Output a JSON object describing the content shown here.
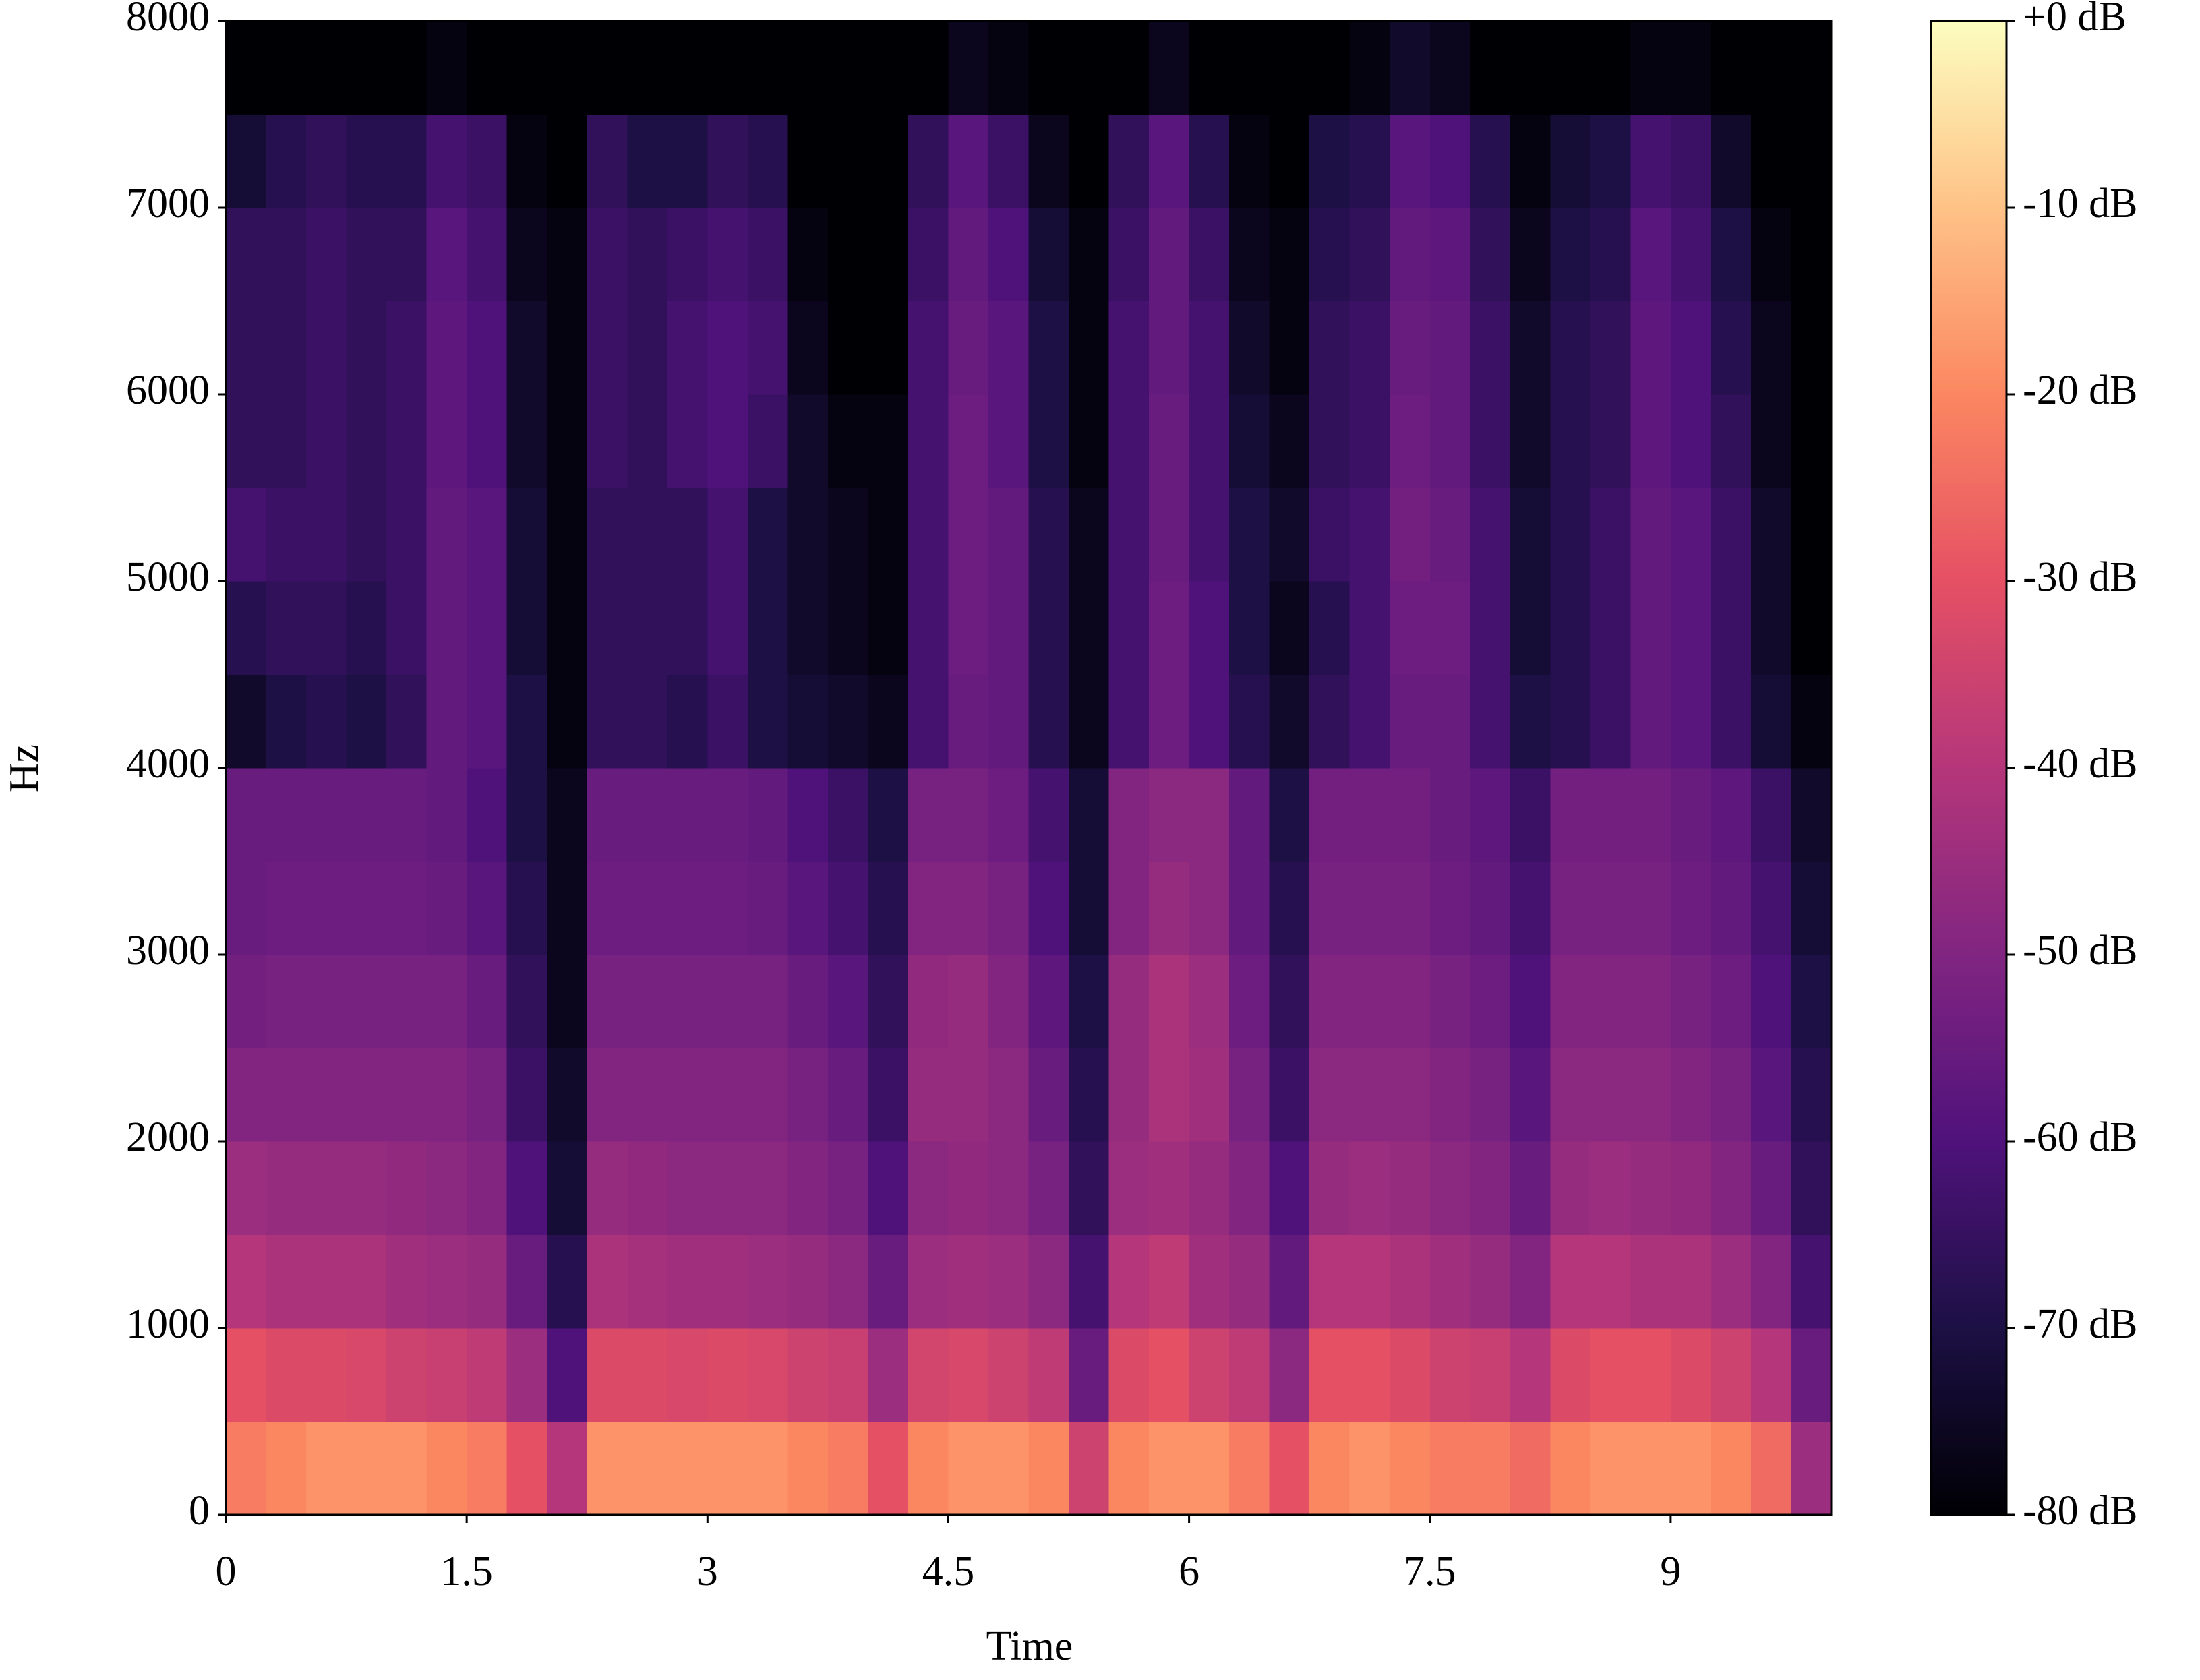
{
  "chart_data": {
    "type": "spectrogram",
    "xlabel": "Time",
    "ylabel": "Hz",
    "xlim": [
      0,
      10
    ],
    "xticks": [
      0,
      1.5,
      3,
      4.5,
      6,
      7.5,
      9
    ],
    "ylim": [
      0,
      8000
    ],
    "yticks": [
      0,
      1000,
      2000,
      3000,
      4000,
      5000,
      6000,
      7000,
      8000
    ],
    "cmap": "magma",
    "clim": [
      -80,
      0
    ],
    "cticks": [
      {
        "value": 0,
        "label": "+0 dB"
      },
      {
        "value": -10,
        "label": "-10 dB"
      },
      {
        "value": -20,
        "label": "-20 dB"
      },
      {
        "value": -30,
        "label": "-30 dB"
      },
      {
        "value": -40,
        "label": "-40 dB"
      },
      {
        "value": -50,
        "label": "-50 dB"
      },
      {
        "value": -60,
        "label": "-60 dB"
      },
      {
        "value": -70,
        "label": "-70 dB"
      },
      {
        "value": -80,
        "label": "-80 dB"
      }
    ],
    "z": [
      [
        -22,
        -20,
        -18,
        -18,
        -18,
        -20,
        -22,
        -30,
        -40,
        -18,
        -18,
        -18,
        -18,
        -18,
        -20,
        -22,
        -30,
        -20,
        -18,
        -18,
        -20,
        -35,
        -20,
        -18,
        -18,
        -22,
        -30,
        -20,
        -18,
        -20,
        -22,
        -22,
        -25,
        -20,
        -18,
        -18,
        -18,
        -20,
        -25,
        -45
      ],
      [
        -30,
        -32,
        -32,
        -33,
        -35,
        -36,
        -38,
        -45,
        -60,
        -32,
        -32,
        -33,
        -32,
        -33,
        -35,
        -36,
        -45,
        -34,
        -33,
        -35,
        -38,
        -55,
        -32,
        -30,
        -35,
        -38,
        -48,
        -30,
        -30,
        -32,
        -35,
        -36,
        -40,
        -32,
        -30,
        -30,
        -32,
        -35,
        -40,
        -55
      ],
      [
        -40,
        -42,
        -42,
        -42,
        -44,
        -45,
        -46,
        -55,
        -68,
        -42,
        -43,
        -44,
        -44,
        -45,
        -46,
        -48,
        -55,
        -45,
        -44,
        -45,
        -48,
        -62,
        -40,
        -38,
        -44,
        -46,
        -56,
        -40,
        -40,
        -42,
        -44,
        -46,
        -50,
        -40,
        -40,
        -42,
        -42,
        -45,
        -50,
        -62
      ],
      [
        -45,
        -46,
        -46,
        -46,
        -47,
        -48,
        -50,
        -60,
        -72,
        -46,
        -47,
        -48,
        -48,
        -48,
        -50,
        -52,
        -60,
        -48,
        -47,
        -48,
        -52,
        -66,
        -45,
        -44,
        -46,
        -50,
        -60,
        -46,
        -45,
        -46,
        -48,
        -50,
        -55,
        -46,
        -45,
        -46,
        -47,
        -50,
        -55,
        -66
      ],
      [
        -50,
        -50,
        -50,
        -50,
        -50,
        -50,
        -52,
        -64,
        -74,
        -50,
        -50,
        -50,
        -50,
        -50,
        -52,
        -55,
        -64,
        -46,
        -46,
        -48,
        -55,
        -68,
        -46,
        -42,
        -44,
        -52,
        -64,
        -48,
        -48,
        -48,
        -50,
        -52,
        -58,
        -48,
        -48,
        -48,
        -50,
        -52,
        -58,
        -68
      ],
      [
        -53,
        -52,
        -52,
        -52,
        -52,
        -52,
        -55,
        -66,
        -76,
        -52,
        -52,
        -52,
        -52,
        -52,
        -55,
        -58,
        -66,
        -47,
        -46,
        -50,
        -57,
        -70,
        -46,
        -42,
        -45,
        -54,
        -66,
        -50,
        -50,
        -50,
        -52,
        -54,
        -60,
        -50,
        -50,
        -50,
        -52,
        -54,
        -60,
        -70
      ],
      [
        -55,
        -54,
        -54,
        -54,
        -54,
        -55,
        -58,
        -68,
        -76,
        -54,
        -54,
        -54,
        -54,
        -55,
        -58,
        -62,
        -68,
        -50,
        -50,
        -52,
        -60,
        -72,
        -50,
        -46,
        -48,
        -56,
        -68,
        -52,
        -52,
        -52,
        -54,
        -56,
        -62,
        -52,
        -52,
        -52,
        -54,
        -56,
        -62,
        -72
      ],
      [
        -55,
        -55,
        -55,
        -55,
        -55,
        -56,
        -60,
        -70,
        -76,
        -55,
        -55,
        -55,
        -55,
        -56,
        -60,
        -64,
        -70,
        -52,
        -52,
        -54,
        -62,
        -72,
        -50,
        -48,
        -48,
        -56,
        -70,
        -53,
        -53,
        -53,
        -55,
        -57,
        -64,
        -53,
        -53,
        -53,
        -55,
        -57,
        -64,
        -74
      ],
      [
        -74,
        -70,
        -68,
        -70,
        -66,
        -56,
        -58,
        -70,
        -78,
        -66,
        -66,
        -68,
        -64,
        -70,
        -72,
        -74,
        -76,
        -62,
        -55,
        -56,
        -68,
        -76,
        -62,
        -54,
        -60,
        -68,
        -74,
        -66,
        -62,
        -55,
        -55,
        -62,
        -70,
        -68,
        -64,
        -56,
        -58,
        -64,
        -72,
        -78
      ],
      [
        -68,
        -66,
        -66,
        -68,
        -64,
        -56,
        -58,
        -72,
        -78,
        -66,
        -66,
        -66,
        -62,
        -70,
        -74,
        -76,
        -78,
        -62,
        -54,
        -56,
        -68,
        -76,
        -62,
        -54,
        -60,
        -70,
        -76,
        -68,
        -62,
        -54,
        -54,
        -62,
        -72,
        -68,
        -64,
        -56,
        -58,
        -64,
        -74,
        -80
      ],
      [
        -62,
        -64,
        -64,
        -66,
        -64,
        -56,
        -58,
        -72,
        -78,
        -66,
        -66,
        -66,
        -62,
        -70,
        -74,
        -76,
        -78,
        -62,
        -54,
        -56,
        -68,
        -76,
        -62,
        -55,
        -62,
        -70,
        -74,
        -64,
        -62,
        -53,
        -55,
        -62,
        -72,
        -68,
        -64,
        -56,
        -58,
        -64,
        -74,
        -80
      ],
      [
        -66,
        -66,
        -64,
        -66,
        -64,
        -57,
        -60,
        -74,
        -78,
        -64,
        -66,
        -62,
        -60,
        -64,
        -74,
        -78,
        -78,
        -62,
        -54,
        -58,
        -70,
        -78,
        -62,
        -55,
        -62,
        -72,
        -76,
        -66,
        -64,
        -54,
        -56,
        -64,
        -74,
        -68,
        -66,
        -57,
        -60,
        -66,
        -76,
        -80
      ],
      [
        -66,
        -66,
        -64,
        -66,
        -64,
        -57,
        -60,
        -74,
        -78,
        -64,
        -66,
        -62,
        -60,
        -62,
        -76,
        -80,
        -80,
        -62,
        -55,
        -58,
        -70,
        -78,
        -62,
        -56,
        -62,
        -74,
        -78,
        -66,
        -64,
        -55,
        -56,
        -64,
        -74,
        -68,
        -66,
        -57,
        -60,
        -68,
        -76,
        -80
      ],
      [
        -66,
        -66,
        -64,
        -66,
        -66,
        -58,
        -62,
        -76,
        -78,
        -64,
        -66,
        -64,
        -62,
        -64,
        -78,
        -80,
        -80,
        -64,
        -56,
        -60,
        -72,
        -78,
        -64,
        -56,
        -64,
        -76,
        -78,
        -68,
        -66,
        -56,
        -57,
        -66,
        -76,
        -70,
        -68,
        -58,
        -62,
        -70,
        -78,
        -80
      ],
      [
        -72,
        -68,
        -66,
        -68,
        -68,
        -62,
        -64,
        -78,
        -80,
        -66,
        -70,
        -70,
        -66,
        -68,
        -80,
        -80,
        -80,
        -66,
        -58,
        -64,
        -76,
        -80,
        -66,
        -58,
        -68,
        -78,
        -80,
        -70,
        -68,
        -58,
        -60,
        -68,
        -78,
        -72,
        -70,
        -62,
        -64,
        -74,
        -80,
        -80
      ],
      [
        -80,
        -80,
        -80,
        -80,
        -80,
        -78,
        -80,
        -80,
        -80,
        -80,
        -80,
        -80,
        -80,
        -80,
        -80,
        -80,
        -80,
        -80,
        -76,
        -78,
        -80,
        -80,
        -80,
        -76,
        -80,
        -80,
        -80,
        -80,
        -78,
        -74,
        -76,
        -80,
        -80,
        -80,
        -80,
        -78,
        -78,
        -80,
        -80,
        -80
      ]
    ]
  }
}
